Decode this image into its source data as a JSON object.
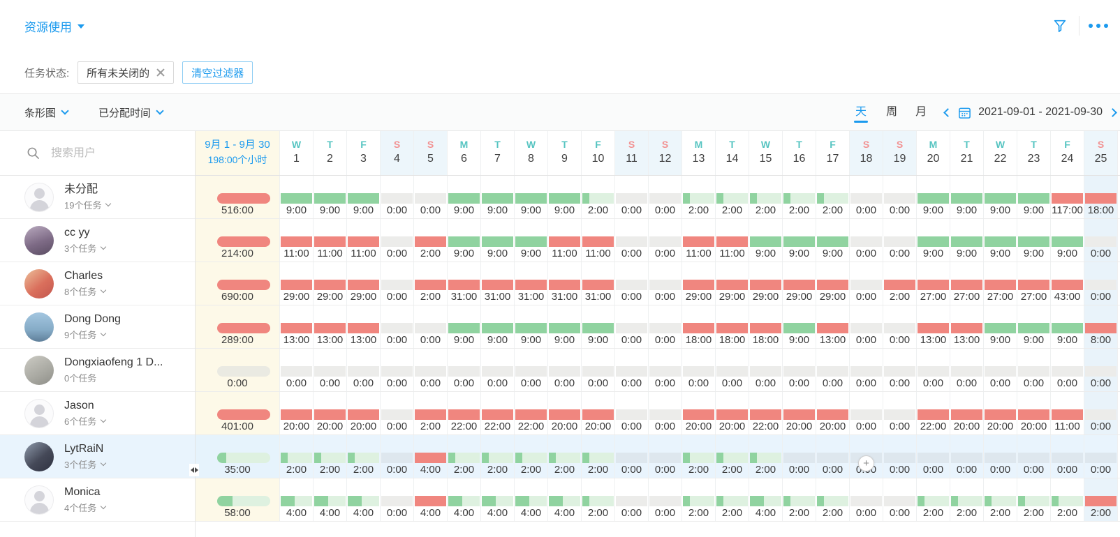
{
  "title": {
    "label": "资源使用"
  },
  "filter_bar": {
    "label": "任务状态:",
    "chip": "所有未关闭的",
    "clear": "清空过滤器"
  },
  "toolbar": {
    "chart_type": "条形图",
    "metric": "已分配时间",
    "segment_day": "天",
    "segment_week": "周",
    "segment_month": "月",
    "date_range": "2021-09-01 - 2021-09-30"
  },
  "sidebar": {
    "search_placeholder": "搜索用户",
    "users": [
      {
        "name": "未分配",
        "tasks": "19个任务",
        "chevron": true,
        "avatar": "default",
        "selected": false
      },
      {
        "name": "cc yy",
        "tasks": "3个任务",
        "chevron": true,
        "avatar": "a1",
        "selected": false
      },
      {
        "name": "Charles",
        "tasks": "8个任务",
        "chevron": true,
        "avatar": "a2",
        "selected": false
      },
      {
        "name": "Dong Dong",
        "tasks": "9个任务",
        "chevron": true,
        "avatar": "a3",
        "selected": false
      },
      {
        "name": "Dongxiaofeng 1 D...",
        "tasks": "0个任务",
        "chevron": false,
        "avatar": "a4",
        "selected": false
      },
      {
        "name": "Jason",
        "tasks": "6个任务",
        "chevron": true,
        "avatar": "default",
        "selected": false
      },
      {
        "name": "LytRaiN",
        "tasks": "3个任务",
        "chevron": true,
        "avatar": "a5",
        "selected": true
      },
      {
        "name": "Monica",
        "tasks": "4个任务",
        "chevron": true,
        "avatar": "default",
        "selected": false
      }
    ]
  },
  "grid": {
    "summary_header": {
      "line1": "9月 1 - 9月 30",
      "line2": "198:00个小时"
    },
    "day_capacity": 9,
    "total_capacity": 198,
    "day_headers": [
      {
        "letter": "W",
        "num": "1",
        "weekend": false
      },
      {
        "letter": "T",
        "num": "2",
        "weekend": false
      },
      {
        "letter": "F",
        "num": "3",
        "weekend": false
      },
      {
        "letter": "S",
        "num": "4",
        "weekend": true
      },
      {
        "letter": "S",
        "num": "5",
        "weekend": true
      },
      {
        "letter": "M",
        "num": "6",
        "weekend": false
      },
      {
        "letter": "T",
        "num": "7",
        "weekend": false
      },
      {
        "letter": "W",
        "num": "8",
        "weekend": false
      },
      {
        "letter": "T",
        "num": "9",
        "weekend": false
      },
      {
        "letter": "F",
        "num": "10",
        "weekend": false
      },
      {
        "letter": "S",
        "num": "11",
        "weekend": true
      },
      {
        "letter": "S",
        "num": "12",
        "weekend": true
      },
      {
        "letter": "M",
        "num": "13",
        "weekend": false
      },
      {
        "letter": "T",
        "num": "14",
        "weekend": false
      },
      {
        "letter": "W",
        "num": "15",
        "weekend": false
      },
      {
        "letter": "T",
        "num": "16",
        "weekend": false
      },
      {
        "letter": "F",
        "num": "17",
        "weekend": false
      },
      {
        "letter": "S",
        "num": "18",
        "weekend": true
      },
      {
        "letter": "S",
        "num": "19",
        "weekend": true
      },
      {
        "letter": "M",
        "num": "20",
        "weekend": false
      },
      {
        "letter": "T",
        "num": "21",
        "weekend": false
      },
      {
        "letter": "W",
        "num": "22",
        "weekend": false
      },
      {
        "letter": "T",
        "num": "23",
        "weekend": false
      },
      {
        "letter": "F",
        "num": "24",
        "weekend": false
      },
      {
        "letter": "S",
        "num": "25",
        "weekend": true
      }
    ],
    "rows": [
      {
        "user": "未分配",
        "summary": {
          "v": "516:00",
          "s": "r"
        },
        "days": [
          {
            "v": "9:00",
            "s": "g"
          },
          {
            "v": "9:00",
            "s": "g"
          },
          {
            "v": "9:00",
            "s": "g"
          },
          {
            "v": "0:00",
            "s": "z"
          },
          {
            "v": "0:00",
            "s": "z"
          },
          {
            "v": "9:00",
            "s": "g"
          },
          {
            "v": "9:00",
            "s": "g"
          },
          {
            "v": "9:00",
            "s": "g"
          },
          {
            "v": "9:00",
            "s": "g"
          },
          {
            "v": "2:00",
            "s": "g"
          },
          {
            "v": "0:00",
            "s": "z"
          },
          {
            "v": "0:00",
            "s": "z"
          },
          {
            "v": "2:00",
            "s": "g"
          },
          {
            "v": "2:00",
            "s": "g"
          },
          {
            "v": "2:00",
            "s": "g"
          },
          {
            "v": "2:00",
            "s": "g"
          },
          {
            "v": "2:00",
            "s": "g"
          },
          {
            "v": "0:00",
            "s": "z"
          },
          {
            "v": "0:00",
            "s": "z"
          },
          {
            "v": "9:00",
            "s": "g"
          },
          {
            "v": "9:00",
            "s": "g"
          },
          {
            "v": "9:00",
            "s": "g"
          },
          {
            "v": "9:00",
            "s": "g"
          },
          {
            "v": "117:00",
            "s": "r"
          },
          {
            "v": "18:00",
            "s": "r"
          }
        ]
      },
      {
        "user": "cc yy",
        "summary": {
          "v": "214:00",
          "s": "r"
        },
        "days": [
          {
            "v": "11:00",
            "s": "r"
          },
          {
            "v": "11:00",
            "s": "r"
          },
          {
            "v": "11:00",
            "s": "r"
          },
          {
            "v": "0:00",
            "s": "z"
          },
          {
            "v": "2:00",
            "s": "r"
          },
          {
            "v": "9:00",
            "s": "g"
          },
          {
            "v": "9:00",
            "s": "g"
          },
          {
            "v": "9:00",
            "s": "g"
          },
          {
            "v": "11:00",
            "s": "r"
          },
          {
            "v": "11:00",
            "s": "r"
          },
          {
            "v": "0:00",
            "s": "z"
          },
          {
            "v": "0:00",
            "s": "z"
          },
          {
            "v": "11:00",
            "s": "r"
          },
          {
            "v": "11:00",
            "s": "r"
          },
          {
            "v": "9:00",
            "s": "g"
          },
          {
            "v": "9:00",
            "s": "g"
          },
          {
            "v": "9:00",
            "s": "g"
          },
          {
            "v": "0:00",
            "s": "z"
          },
          {
            "v": "0:00",
            "s": "z"
          },
          {
            "v": "9:00",
            "s": "g"
          },
          {
            "v": "9:00",
            "s": "g"
          },
          {
            "v": "9:00",
            "s": "g"
          },
          {
            "v": "9:00",
            "s": "g"
          },
          {
            "v": "9:00",
            "s": "g"
          },
          {
            "v": "0:00",
            "s": "z"
          }
        ]
      },
      {
        "user": "Charles",
        "summary": {
          "v": "690:00",
          "s": "r"
        },
        "days": [
          {
            "v": "29:00",
            "s": "r"
          },
          {
            "v": "29:00",
            "s": "r"
          },
          {
            "v": "29:00",
            "s": "r"
          },
          {
            "v": "0:00",
            "s": "z"
          },
          {
            "v": "2:00",
            "s": "r"
          },
          {
            "v": "31:00",
            "s": "r"
          },
          {
            "v": "31:00",
            "s": "r"
          },
          {
            "v": "31:00",
            "s": "r"
          },
          {
            "v": "31:00",
            "s": "r"
          },
          {
            "v": "31:00",
            "s": "r"
          },
          {
            "v": "0:00",
            "s": "z"
          },
          {
            "v": "0:00",
            "s": "z"
          },
          {
            "v": "29:00",
            "s": "r"
          },
          {
            "v": "29:00",
            "s": "r"
          },
          {
            "v": "29:00",
            "s": "r"
          },
          {
            "v": "29:00",
            "s": "r"
          },
          {
            "v": "29:00",
            "s": "r"
          },
          {
            "v": "0:00",
            "s": "z"
          },
          {
            "v": "2:00",
            "s": "r"
          },
          {
            "v": "27:00",
            "s": "r"
          },
          {
            "v": "27:00",
            "s": "r"
          },
          {
            "v": "27:00",
            "s": "r"
          },
          {
            "v": "27:00",
            "s": "r"
          },
          {
            "v": "43:00",
            "s": "r"
          },
          {
            "v": "0:00",
            "s": "z"
          }
        ]
      },
      {
        "user": "Dong Dong",
        "summary": {
          "v": "289:00",
          "s": "r"
        },
        "days": [
          {
            "v": "13:00",
            "s": "r"
          },
          {
            "v": "13:00",
            "s": "r"
          },
          {
            "v": "13:00",
            "s": "r"
          },
          {
            "v": "0:00",
            "s": "z"
          },
          {
            "v": "0:00",
            "s": "z"
          },
          {
            "v": "9:00",
            "s": "g"
          },
          {
            "v": "9:00",
            "s": "g"
          },
          {
            "v": "9:00",
            "s": "g"
          },
          {
            "v": "9:00",
            "s": "g"
          },
          {
            "v": "9:00",
            "s": "g"
          },
          {
            "v": "0:00",
            "s": "z"
          },
          {
            "v": "0:00",
            "s": "z"
          },
          {
            "v": "18:00",
            "s": "r"
          },
          {
            "v": "18:00",
            "s": "r"
          },
          {
            "v": "18:00",
            "s": "r"
          },
          {
            "v": "9:00",
            "s": "g"
          },
          {
            "v": "13:00",
            "s": "r"
          },
          {
            "v": "0:00",
            "s": "z"
          },
          {
            "v": "0:00",
            "s": "z"
          },
          {
            "v": "13:00",
            "s": "r"
          },
          {
            "v": "13:00",
            "s": "r"
          },
          {
            "v": "9:00",
            "s": "g"
          },
          {
            "v": "9:00",
            "s": "g"
          },
          {
            "v": "9:00",
            "s": "g"
          },
          {
            "v": "8:00",
            "s": "r"
          }
        ]
      },
      {
        "user": "Dongxiaofeng 1 D...",
        "summary": {
          "v": "0:00",
          "s": "z"
        },
        "days": [
          {
            "v": "0:00",
            "s": "z"
          },
          {
            "v": "0:00",
            "s": "z"
          },
          {
            "v": "0:00",
            "s": "z"
          },
          {
            "v": "0:00",
            "s": "z"
          },
          {
            "v": "0:00",
            "s": "z"
          },
          {
            "v": "0:00",
            "s": "z"
          },
          {
            "v": "0:00",
            "s": "z"
          },
          {
            "v": "0:00",
            "s": "z"
          },
          {
            "v": "0:00",
            "s": "z"
          },
          {
            "v": "0:00",
            "s": "z"
          },
          {
            "v": "0:00",
            "s": "z"
          },
          {
            "v": "0:00",
            "s": "z"
          },
          {
            "v": "0:00",
            "s": "z"
          },
          {
            "v": "0:00",
            "s": "z"
          },
          {
            "v": "0:00",
            "s": "z"
          },
          {
            "v": "0:00",
            "s": "z"
          },
          {
            "v": "0:00",
            "s": "z"
          },
          {
            "v": "0:00",
            "s": "z"
          },
          {
            "v": "0:00",
            "s": "z"
          },
          {
            "v": "0:00",
            "s": "z"
          },
          {
            "v": "0:00",
            "s": "z"
          },
          {
            "v": "0:00",
            "s": "z"
          },
          {
            "v": "0:00",
            "s": "z"
          },
          {
            "v": "0:00",
            "s": "z"
          },
          {
            "v": "0:00",
            "s": "z"
          }
        ]
      },
      {
        "user": "Jason",
        "summary": {
          "v": "401:00",
          "s": "r"
        },
        "days": [
          {
            "v": "20:00",
            "s": "r"
          },
          {
            "v": "20:00",
            "s": "r"
          },
          {
            "v": "20:00",
            "s": "r"
          },
          {
            "v": "0:00",
            "s": "z"
          },
          {
            "v": "2:00",
            "s": "r"
          },
          {
            "v": "22:00",
            "s": "r"
          },
          {
            "v": "22:00",
            "s": "r"
          },
          {
            "v": "22:00",
            "s": "r"
          },
          {
            "v": "20:00",
            "s": "r"
          },
          {
            "v": "20:00",
            "s": "r"
          },
          {
            "v": "0:00",
            "s": "z"
          },
          {
            "v": "0:00",
            "s": "z"
          },
          {
            "v": "20:00",
            "s": "r"
          },
          {
            "v": "20:00",
            "s": "r"
          },
          {
            "v": "22:00",
            "s": "r"
          },
          {
            "v": "20:00",
            "s": "r"
          },
          {
            "v": "20:00",
            "s": "r"
          },
          {
            "v": "0:00",
            "s": "z"
          },
          {
            "v": "0:00",
            "s": "z"
          },
          {
            "v": "22:00",
            "s": "r"
          },
          {
            "v": "20:00",
            "s": "r"
          },
          {
            "v": "20:00",
            "s": "r"
          },
          {
            "v": "20:00",
            "s": "r"
          },
          {
            "v": "11:00",
            "s": "r"
          },
          {
            "v": "0:00",
            "s": "z"
          }
        ]
      },
      {
        "user": "LytRaiN",
        "summary": {
          "v": "35:00",
          "s": "g"
        },
        "days": [
          {
            "v": "2:00",
            "s": "g"
          },
          {
            "v": "2:00",
            "s": "g"
          },
          {
            "v": "2:00",
            "s": "g"
          },
          {
            "v": "0:00",
            "s": "z"
          },
          {
            "v": "4:00",
            "s": "r"
          },
          {
            "v": "2:00",
            "s": "g"
          },
          {
            "v": "2:00",
            "s": "g"
          },
          {
            "v": "2:00",
            "s": "g"
          },
          {
            "v": "2:00",
            "s": "g"
          },
          {
            "v": "2:00",
            "s": "g"
          },
          {
            "v": "0:00",
            "s": "z"
          },
          {
            "v": "0:00",
            "s": "z"
          },
          {
            "v": "2:00",
            "s": "g"
          },
          {
            "v": "2:00",
            "s": "g"
          },
          {
            "v": "2:00",
            "s": "g"
          },
          {
            "v": "0:00",
            "s": "z"
          },
          {
            "v": "0:00",
            "s": "z"
          },
          {
            "v": "0:00",
            "s": "z"
          },
          {
            "v": "0:00",
            "s": "z"
          },
          {
            "v": "0:00",
            "s": "z"
          },
          {
            "v": "0:00",
            "s": "z"
          },
          {
            "v": "0:00",
            "s": "z"
          },
          {
            "v": "0:00",
            "s": "z"
          },
          {
            "v": "0:00",
            "s": "z"
          },
          {
            "v": "0:00",
            "s": "z"
          }
        ]
      },
      {
        "user": "Monica",
        "summary": {
          "v": "58:00",
          "s": "g"
        },
        "days": [
          {
            "v": "4:00",
            "s": "g"
          },
          {
            "v": "4:00",
            "s": "g"
          },
          {
            "v": "4:00",
            "s": "g"
          },
          {
            "v": "0:00",
            "s": "z"
          },
          {
            "v": "4:00",
            "s": "r"
          },
          {
            "v": "4:00",
            "s": "g"
          },
          {
            "v": "4:00",
            "s": "g"
          },
          {
            "v": "4:00",
            "s": "g"
          },
          {
            "v": "4:00",
            "s": "g"
          },
          {
            "v": "2:00",
            "s": "g"
          },
          {
            "v": "0:00",
            "s": "z"
          },
          {
            "v": "0:00",
            "s": "z"
          },
          {
            "v": "2:00",
            "s": "g"
          },
          {
            "v": "2:00",
            "s": "g"
          },
          {
            "v": "4:00",
            "s": "g"
          },
          {
            "v": "2:00",
            "s": "g"
          },
          {
            "v": "2:00",
            "s": "g"
          },
          {
            "v": "0:00",
            "s": "z"
          },
          {
            "v": "0:00",
            "s": "z"
          },
          {
            "v": "2:00",
            "s": "g"
          },
          {
            "v": "2:00",
            "s": "g"
          },
          {
            "v": "2:00",
            "s": "g"
          },
          {
            "v": "2:00",
            "s": "g"
          },
          {
            "v": "2:00",
            "s": "g"
          },
          {
            "v": "2:00",
            "s": "r"
          }
        ]
      }
    ]
  },
  "colors": {
    "accent_blue": "#1b9aee",
    "bar_over_red": "#f0867f",
    "bar_ok_green": "#90d3a0",
    "bar_ok_track": "#def1e0",
    "bar_zero_track": "#ececea",
    "summary_col_bg": "#fdf9e8",
    "weekend_header_bg": "#edf6fb",
    "selected_row_bg": "#e9f4fd",
    "weekday_letter": "#56c4c1",
    "weekend_letter": "#f29191"
  }
}
